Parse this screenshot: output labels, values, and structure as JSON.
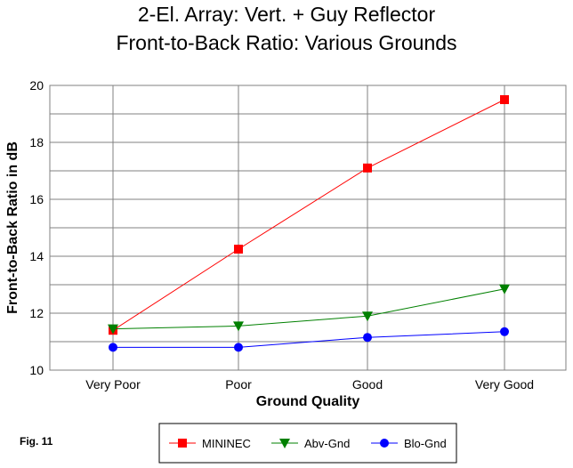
{
  "chart_data": {
    "type": "line",
    "title": [
      "2-El. Array:  Vert. + Guy Reflector",
      "Front-to-Back Ratio:  Various Grounds"
    ],
    "xlabel": "Ground Quality",
    "ylabel": "Front-to-Back Ratio in dB",
    "categories": [
      "Very Poor",
      "Poor",
      "Good",
      "Very Good"
    ],
    "ylim": [
      10,
      20
    ],
    "yticks": [
      "10",
      "12",
      "14",
      "16",
      "18",
      "20"
    ],
    "grid": true,
    "legend_position": "bottom",
    "series": [
      {
        "name": "MININEC",
        "color": "#ff0000",
        "marker": "square",
        "values": [
          11.4,
          14.25,
          17.1,
          19.5
        ]
      },
      {
        "name": "Abv-Gnd",
        "color": "#008000",
        "marker": "triangle-down",
        "values": [
          11.45,
          11.55,
          11.9,
          12.85
        ]
      },
      {
        "name": "Blo-Gnd",
        "color": "#0000ff",
        "marker": "circle",
        "values": [
          10.8,
          10.8,
          11.15,
          11.35
        ]
      }
    ]
  },
  "figure_label": "Fig. 11"
}
